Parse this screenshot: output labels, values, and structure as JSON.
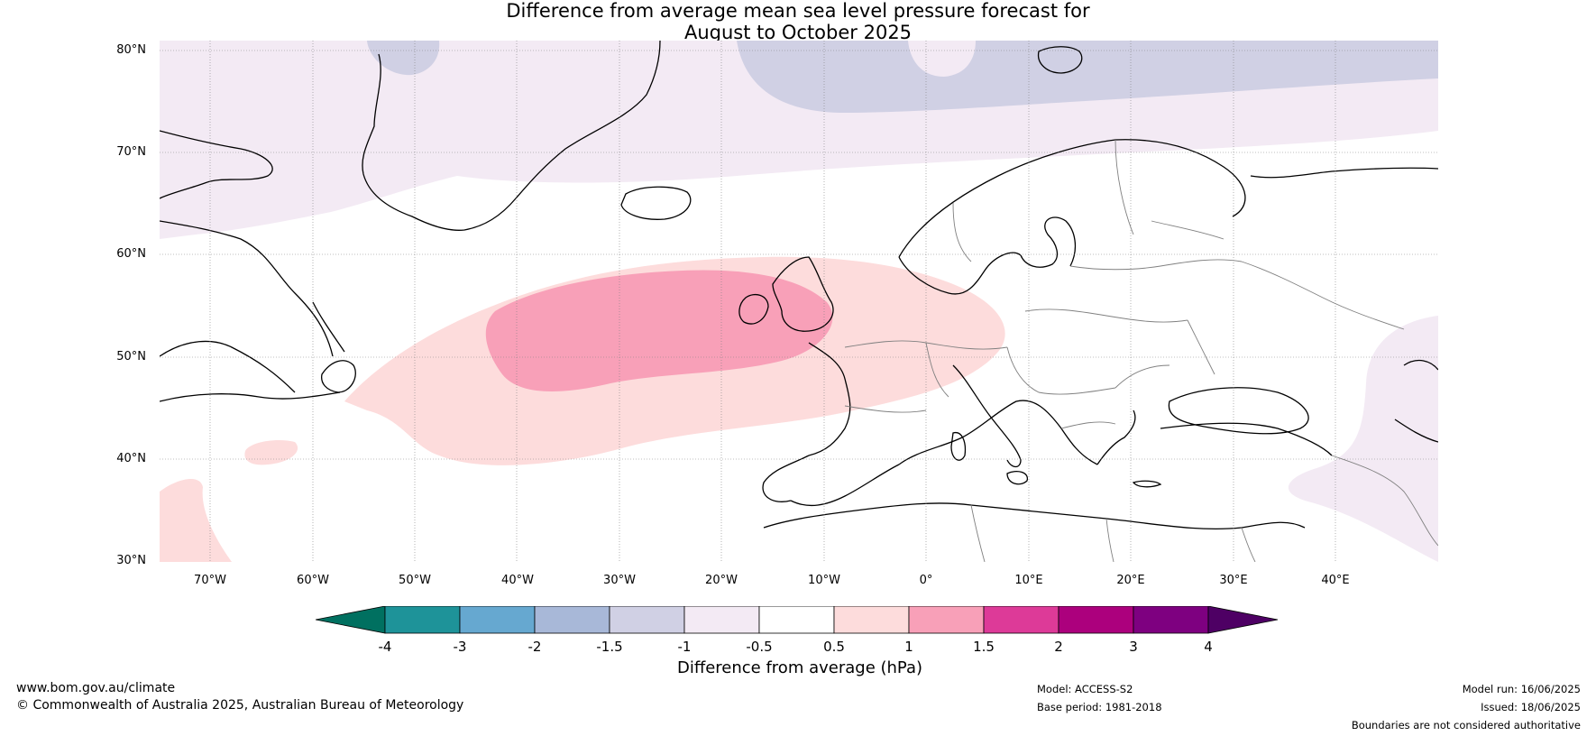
{
  "title": {
    "line1": "Difference from average mean sea level pressure forecast for",
    "line2": "August to October 2025"
  },
  "map": {
    "lat_ticks": [
      "80°N",
      "70°N",
      "60°N",
      "50°N",
      "40°N",
      "30°N"
    ],
    "lon_ticks": [
      "70°W",
      "60°W",
      "50°W",
      "40°W",
      "30°W",
      "20°W",
      "10°W",
      "0°",
      "10°E",
      "20°E",
      "30°E",
      "40°E"
    ],
    "extent": {
      "lon_min": -75,
      "lon_max": 50,
      "lat_min": 30,
      "lat_max": 81
    }
  },
  "colorbar": {
    "label": "Difference from average (hPa)",
    "tick_labels": [
      "-4",
      "-3",
      "-2",
      "-1.5",
      "-1",
      "-0.5",
      "0.5",
      "1",
      "1.5",
      "2",
      "3",
      "4"
    ],
    "colors": [
      "#007060",
      "#1e9399",
      "#66a8d0",
      "#a8b8d8",
      "#d0d0e4",
      "#f3eaf4",
      "#ffffff",
      "#fddcdc",
      "#f8a0b8",
      "#dd3a98",
      "#ac007d",
      "#7e0080",
      "#4e0064"
    ]
  },
  "footer": {
    "website": "www.bom.gov.au/climate",
    "copyright": "© Commonwealth of Australia 2025, Australian Bureau of Meteorology",
    "model": "Model: ACCESS-S2",
    "base_period": "Base period: 1981-2018",
    "model_run": "Model run: 16/06/2025",
    "issued": "Issued: 18/06/2025",
    "disclaimer": "Boundaries are not considered authoritative"
  }
}
